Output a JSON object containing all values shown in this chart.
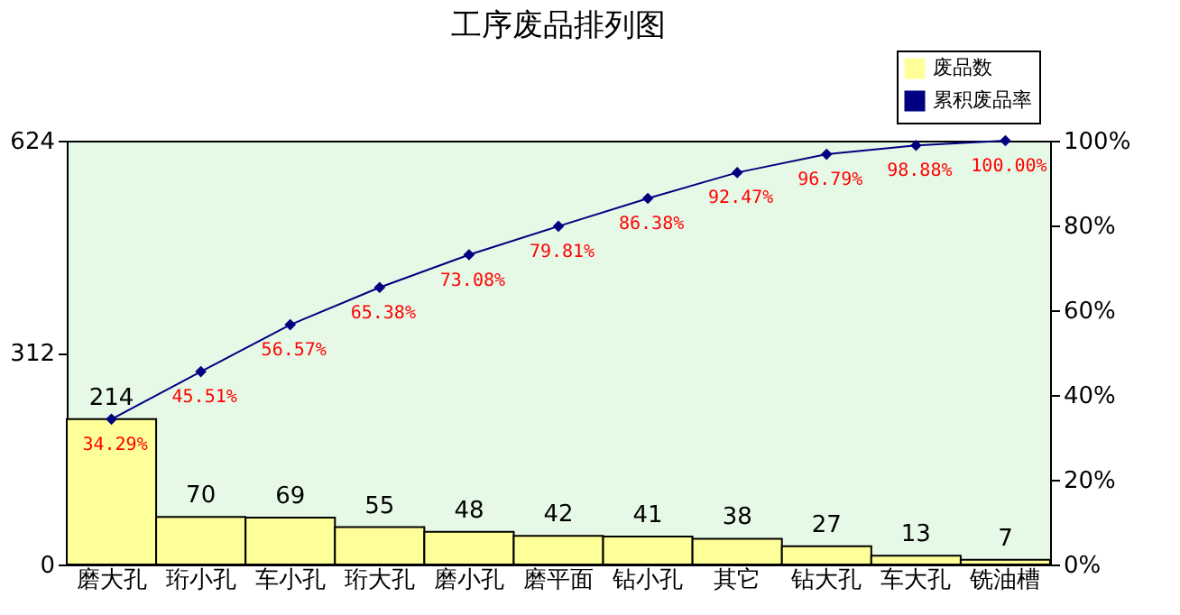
{
  "chart_data": {
    "type": "bar",
    "title": "工序废品排列图",
    "categories": [
      "磨大孔",
      "珩小孔",
      "车小孔",
      "珩大孔",
      "磨小孔",
      "磨平面",
      "钻小孔",
      "其它",
      "钻大孔",
      "车大孔",
      "铣油槽"
    ],
    "series": [
      {
        "name": "废品数",
        "color": "#ffff99",
        "values": [
          214,
          70,
          69,
          55,
          48,
          42,
          41,
          38,
          27,
          13,
          7
        ],
        "value_labels": [
          "214",
          "70",
          "69",
          "55",
          "48",
          "42",
          "41",
          "38",
          "27",
          "13",
          "7"
        ]
      },
      {
        "name": "累积废品率",
        "type": "line",
        "axis": "y2",
        "color": "#000080",
        "values": [
          34.29,
          45.51,
          56.57,
          65.38,
          73.08,
          79.81,
          86.38,
          92.47,
          96.79,
          98.88,
          100.0
        ],
        "value_labels": [
          "34.29%",
          "45.51%",
          "56.57%",
          "65.38%",
          "73.08%",
          "79.81%",
          "86.38%",
          "92.47%",
          "96.79%",
          "98.88%",
          "100.00%"
        ]
      }
    ],
    "ylim": [
      0,
      624
    ],
    "yticks": [
      0,
      312,
      624
    ],
    "y2lim": [
      0,
      100
    ],
    "y2ticks": [
      {
        "value": 0,
        "label": "0%"
      },
      {
        "value": 20,
        "label": "20%"
      },
      {
        "value": 40,
        "label": "40%"
      },
      {
        "value": 60,
        "label": "60%"
      },
      {
        "value": 80,
        "label": "80%"
      },
      {
        "value": 100,
        "label": "100%"
      }
    ],
    "marker": "diamond",
    "line_style": "solid",
    "grid": false,
    "legend": "top right"
  }
}
